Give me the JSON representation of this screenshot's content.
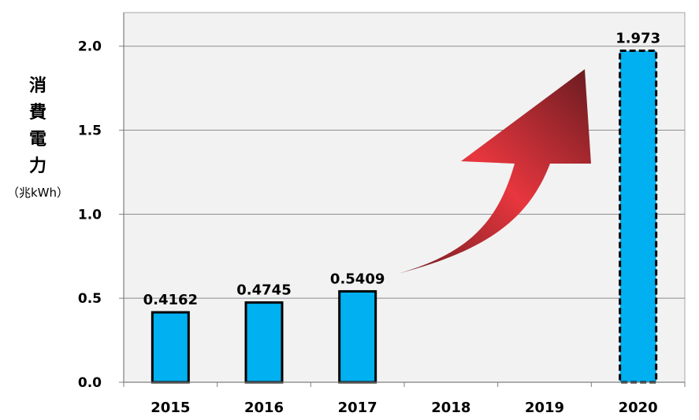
{
  "chart_data": {
    "type": "bar",
    "categories": [
      "2015",
      "2016",
      "2017",
      "2018",
      "2019",
      "2020"
    ],
    "values": [
      0.4162,
      0.4745,
      0.5409,
      null,
      null,
      1.973
    ],
    "data_labels": [
      "0.4162",
      "0.4745",
      "0.5409",
      "",
      "",
      "1.973"
    ],
    "projected": [
      false,
      false,
      false,
      false,
      false,
      true
    ],
    "ylabel": "消費電力",
    "ylabel_unit": "（兆kWh）",
    "ylim": [
      0,
      2.2
    ],
    "yticks": [
      0.0,
      0.5,
      1.0,
      1.5,
      2.0
    ],
    "ytick_labels": [
      "0.0",
      "0.5",
      "1.0",
      "1.5",
      "2.0"
    ],
    "grid": true,
    "bar_color": "#00b0f0",
    "plot_background": "#f2f2f2",
    "arrow_color": "#e8363e",
    "arrow_shadow_color": "#6e1d22"
  }
}
